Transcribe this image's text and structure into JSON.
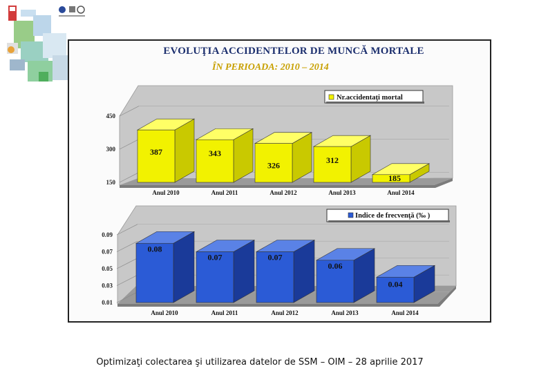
{
  "footer": {
    "caption": "Optimizaţi colectarea şi utilizarea datelor de SSM – OIM – 28 aprilie 2017"
  },
  "chart_data": [
    {
      "type": "bar",
      "title": "EVOLUŢIA ACCIDENTELOR DE MUNCĂ MORTALE",
      "subtitle": "ÎN PERIOADA: 2010 – 2014",
      "categories": [
        "Anul 2010",
        "Anul 2011",
        "Anul 2012",
        "Anul 2013",
        "Anul 2014"
      ],
      "series": [
        {
          "name": "Nr.accidentaţi mortal",
          "values": [
            387,
            343,
            326,
            312,
            185
          ],
          "color": "#f2f200",
          "side_color": "#c9c900",
          "top_color": "#ffff66"
        }
      ],
      "data_labels": [
        "387",
        "343",
        "326",
        "312",
        "185"
      ],
      "y_ticks": [
        "450",
        "300",
        "150"
      ],
      "ylim": [
        150,
        450
      ],
      "legend": "top-right",
      "style": "3d"
    },
    {
      "type": "bar",
      "categories": [
        "Anul 2010",
        "Anul 2011",
        "Anul 2012",
        "Anul 2013",
        "Anul 2014"
      ],
      "series": [
        {
          "name": "Indice de frecvenţă (‰ )",
          "values": [
            0.08,
            0.07,
            0.07,
            0.06,
            0.04
          ],
          "color": "#2b5bd6",
          "side_color": "#1a3a99",
          "top_color": "#5a82e6"
        }
      ],
      "data_labels": [
        "0.08",
        "0.07",
        "0.07",
        "0.06",
        "0.04"
      ],
      "y_ticks": [
        "0.09",
        "0.07",
        "0.05",
        "0.03",
        "0.01"
      ],
      "ylim": [
        0.01,
        0.09
      ],
      "legend": "top-right",
      "style": "3d"
    }
  ]
}
